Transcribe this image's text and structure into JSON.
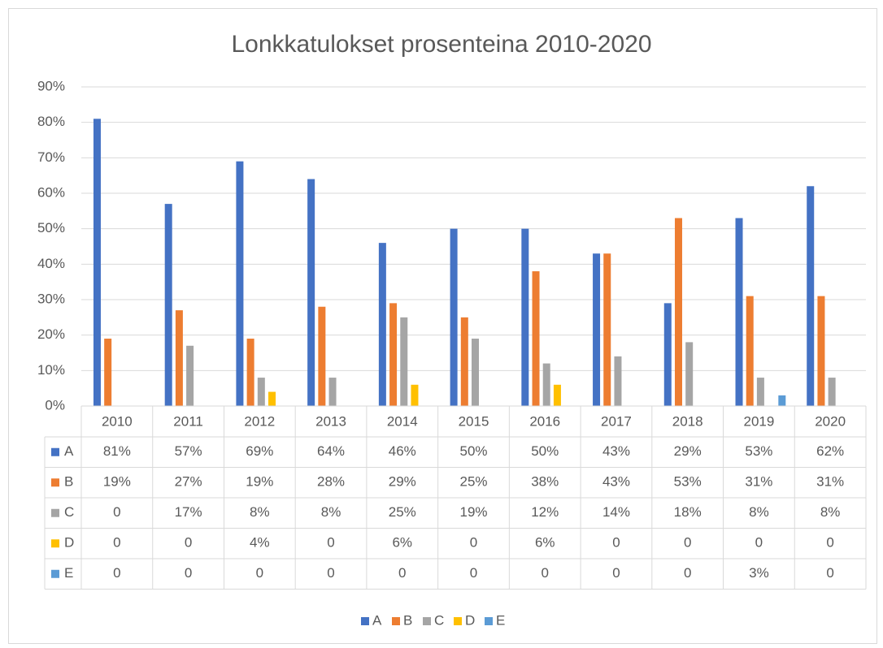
{
  "chart_data": {
    "type": "bar",
    "title": "Lonkkatulokset prosenteina 2010-2020",
    "categories": [
      "2010",
      "2011",
      "2012",
      "2013",
      "2014",
      "2015",
      "2016",
      "2017",
      "2018",
      "2019",
      "2020"
    ],
    "series": [
      {
        "name": "A",
        "color": "#4472c4",
        "values": [
          81,
          57,
          69,
          64,
          46,
          50,
          50,
          43,
          29,
          53,
          62
        ],
        "value_labels": [
          "81%",
          "57%",
          "69%",
          "64%",
          "46%",
          "50%",
          "50%",
          "43%",
          "29%",
          "53%",
          "62%"
        ]
      },
      {
        "name": "B",
        "color": "#ed7d31",
        "values": [
          19,
          27,
          19,
          28,
          29,
          25,
          38,
          43,
          53,
          31,
          31
        ],
        "value_labels": [
          "19%",
          "27%",
          "19%",
          "28%",
          "29%",
          "25%",
          "38%",
          "43%",
          "53%",
          "31%",
          "31%"
        ]
      },
      {
        "name": "C",
        "color": "#a5a5a5",
        "values": [
          0,
          17,
          8,
          8,
          25,
          19,
          12,
          14,
          18,
          8,
          8
        ],
        "value_labels": [
          "0",
          "17%",
          "8%",
          "8%",
          "25%",
          "19%",
          "12%",
          "14%",
          "18%",
          "8%",
          "8%"
        ]
      },
      {
        "name": "D",
        "color": "#ffc000",
        "values": [
          0,
          0,
          4,
          0,
          6,
          0,
          6,
          0,
          0,
          0,
          0
        ],
        "value_labels": [
          "0",
          "0",
          "4%",
          "0",
          "6%",
          "0",
          "6%",
          "0",
          "0",
          "0",
          "0"
        ]
      },
      {
        "name": "E",
        "color": "#5b9bd5",
        "values": [
          0,
          0,
          0,
          0,
          0,
          0,
          0,
          0,
          0,
          3,
          0
        ],
        "value_labels": [
          "0",
          "0",
          "0",
          "0",
          "0",
          "0",
          "0",
          "0",
          "0",
          "3%",
          "0"
        ]
      }
    ],
    "ylim": [
      0,
      90
    ],
    "yticks": [
      {
        "value": 0,
        "label": "0%"
      },
      {
        "value": 10,
        "label": "10%"
      },
      {
        "value": 20,
        "label": "20%"
      },
      {
        "value": 30,
        "label": "30%"
      },
      {
        "value": 40,
        "label": "40%"
      },
      {
        "value": 50,
        "label": "50%"
      },
      {
        "value": 60,
        "label": "60%"
      },
      {
        "value": 70,
        "label": "70%"
      },
      {
        "value": 80,
        "label": "80%"
      },
      {
        "value": 90,
        "label": "90%"
      }
    ],
    "grid": true,
    "legend": "bottom",
    "data_table": true
  }
}
